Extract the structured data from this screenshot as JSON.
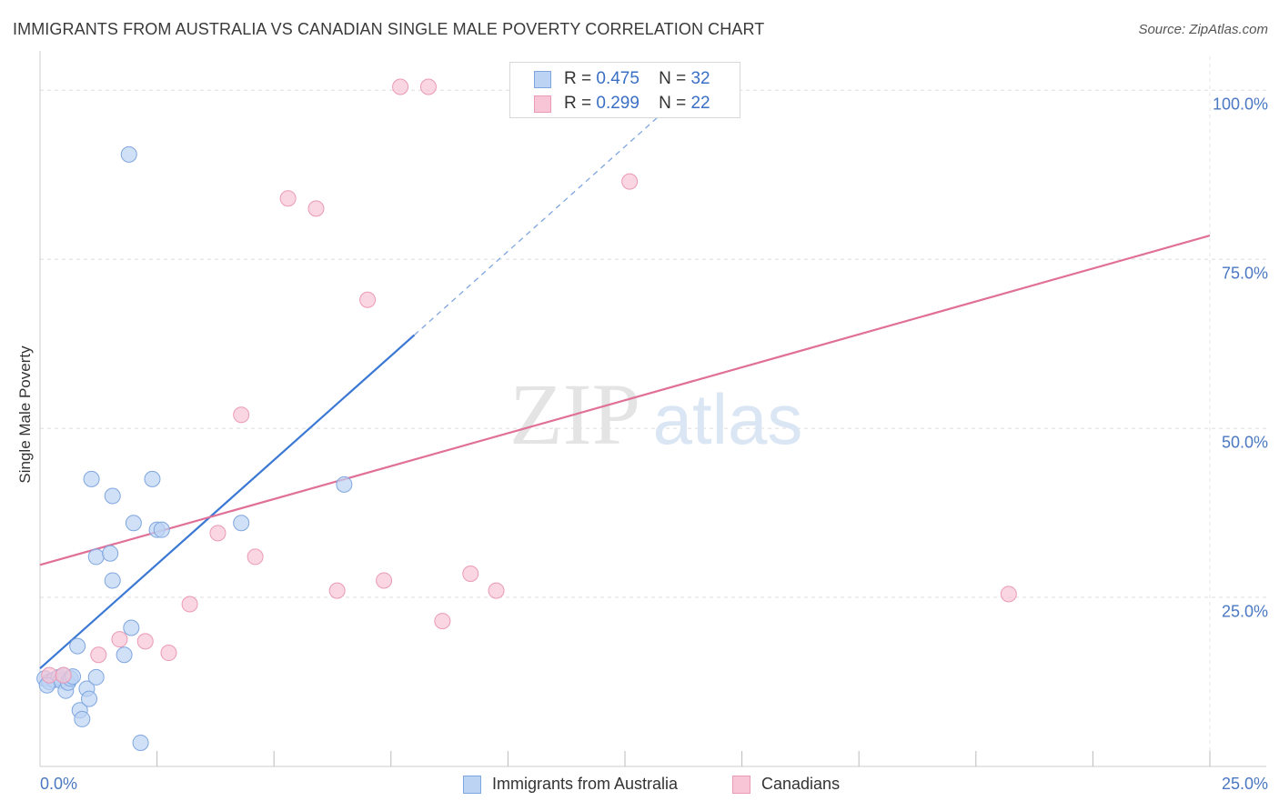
{
  "title": "IMMIGRANTS FROM AUSTRALIA VS CANADIAN SINGLE MALE POVERTY CORRELATION CHART",
  "source": "Source: ZipAtlas.com",
  "watermark": {
    "zip": "ZIP",
    "atlas": "atlas"
  },
  "colors": {
    "blue": "#3a78d4",
    "blue_fill": "#bcd3f3",
    "blue_stroke": "#7fa6df",
    "pink": "#e07098",
    "pink_fill": "#f7c5d5",
    "pink_stroke": "#eb9ab5",
    "tick_text": "#4a78c2"
  },
  "legend": {
    "r_label": "R =",
    "n_label": "N =",
    "series": [
      {
        "name": "Immigrants from Australia",
        "r": "0.475",
        "n": "32"
      },
      {
        "name": "Canadians",
        "r": "0.299",
        "n": "22"
      }
    ]
  },
  "chart_data": {
    "type": "scatter",
    "xlabel": "",
    "ylabel": "Single Male Poverty",
    "xlim": [
      0,
      25
    ],
    "ylim": [
      0,
      105
    ],
    "y_ticks": [
      {
        "value": 25,
        "label": "25.0%"
      },
      {
        "value": 50,
        "label": "50.0%"
      },
      {
        "value": 75,
        "label": "75.0%"
      },
      {
        "value": 100,
        "label": "100.0%"
      }
    ],
    "x_tick_labels": {
      "min": "0.0%",
      "max": "25.0%"
    },
    "x_minor_ticks": [
      2.5,
      5,
      7.5,
      10,
      12.5,
      15,
      17.5,
      20,
      22.5,
      25
    ],
    "series": [
      {
        "name": "Immigrants from Australia",
        "r": 0.475,
        "n": 32,
        "points": [
          [
            0.1,
            13.0
          ],
          [
            0.2,
            12.5
          ],
          [
            0.3,
            12.8
          ],
          [
            0.4,
            13.2
          ],
          [
            0.45,
            12.7
          ],
          [
            0.5,
            13.5
          ],
          [
            0.55,
            11.2
          ],
          [
            0.6,
            12.4
          ],
          [
            0.65,
            13.0
          ],
          [
            0.7,
            13.3
          ],
          [
            0.8,
            17.8
          ],
          [
            0.85,
            8.3
          ],
          [
            0.9,
            7.0
          ],
          [
            1.0,
            11.5
          ],
          [
            1.05,
            10.0
          ],
          [
            1.1,
            42.5
          ],
          [
            1.2,
            13.2
          ],
          [
            1.2,
            31.0
          ],
          [
            1.5,
            31.5
          ],
          [
            1.55,
            27.5
          ],
          [
            1.55,
            40.0
          ],
          [
            1.8,
            16.5
          ],
          [
            1.9,
            90.5
          ],
          [
            1.95,
            20.5
          ],
          [
            2.0,
            36.0
          ],
          [
            2.15,
            3.5
          ],
          [
            2.4,
            42.5
          ],
          [
            2.5,
            35.0
          ],
          [
            2.6,
            35.0
          ],
          [
            4.3,
            36.0
          ],
          [
            6.5,
            41.7
          ],
          [
            0.15,
            12.0
          ]
        ],
        "trend": {
          "x0": 0,
          "y0": 14.5,
          "x1": 8.0,
          "y1": 63.8,
          "dash_x1": 13.2,
          "dash_y1": 96.0
        }
      },
      {
        "name": "Canadians",
        "r": 0.299,
        "n": 22,
        "points": [
          [
            0.2,
            13.5
          ],
          [
            0.5,
            13.5
          ],
          [
            1.25,
            16.5
          ],
          [
            1.7,
            18.8
          ],
          [
            2.25,
            18.5
          ],
          [
            2.75,
            16.8
          ],
          [
            3.2,
            24.0
          ],
          [
            3.8,
            34.5
          ],
          [
            4.3,
            52.0
          ],
          [
            4.6,
            31.0
          ],
          [
            5.3,
            84.0
          ],
          [
            5.9,
            82.5
          ],
          [
            6.35,
            26.0
          ],
          [
            7.0,
            69.0
          ],
          [
            7.35,
            27.5
          ],
          [
            7.7,
            100.5
          ],
          [
            8.3,
            100.5
          ],
          [
            8.6,
            21.5
          ],
          [
            9.2,
            28.5
          ],
          [
            9.75,
            26.0
          ],
          [
            12.6,
            86.5
          ],
          [
            20.7,
            25.5
          ]
        ],
        "trend": {
          "x0": 0,
          "y0": 29.8,
          "x1": 25,
          "y1": 78.5
        }
      }
    ]
  }
}
